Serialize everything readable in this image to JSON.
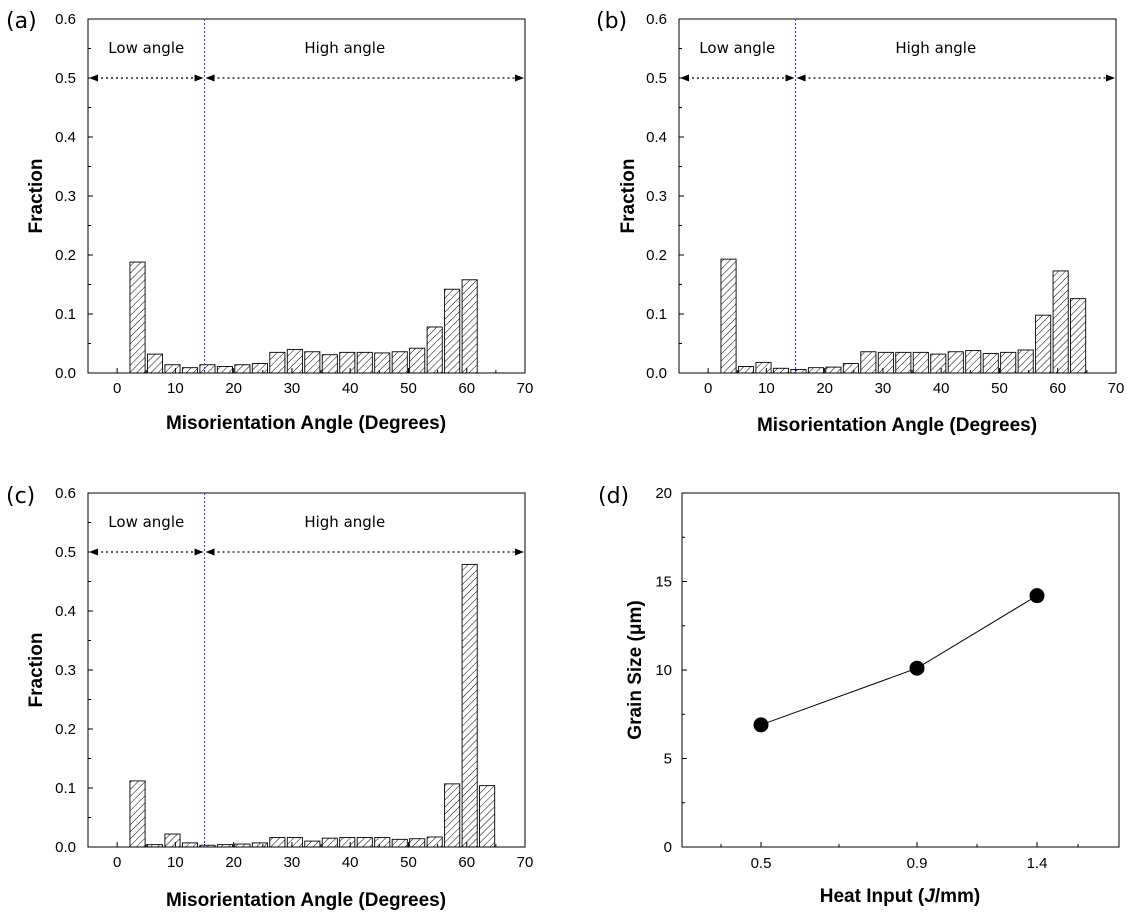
{
  "chart_data": [
    {
      "panel": "(a)",
      "type": "bar",
      "xlabel": "Misorientation Angle (Degrees)",
      "ylabel": "Fraction",
      "xlim": [
        -5,
        70
      ],
      "ylim": [
        0,
        0.6
      ],
      "xticks": [
        0,
        10,
        20,
        30,
        40,
        50,
        60,
        70
      ],
      "yticks": [
        0.0,
        0.1,
        0.2,
        0.3,
        0.4,
        0.5,
        0.6
      ],
      "ytick_labels": [
        "0.0",
        "0.1",
        "0.2",
        "0.3",
        "0.4",
        "0.5",
        "0.6"
      ],
      "bar_width": 2.6,
      "x": [
        3.5,
        6.5,
        9.5,
        12.5,
        15.5,
        18.5,
        21.5,
        24.5,
        27.5,
        30.5,
        33.5,
        36.5,
        39.5,
        42.5,
        45.5,
        48.5,
        51.5,
        54.5,
        57.5,
        60.5,
        63.5
      ],
      "values": [
        0.188,
        0.032,
        0.014,
        0.009,
        0.014,
        0.011,
        0.014,
        0.016,
        0.035,
        0.04,
        0.036,
        0.031,
        0.035,
        0.035,
        0.034,
        0.036,
        0.042,
        0.078,
        0.142,
        0.158,
        0.0
      ],
      "boundary_x": 15,
      "arrow_y": 0.5,
      "region_labels": [
        "Low angle",
        "High angle"
      ]
    },
    {
      "panel": "(b)",
      "type": "bar",
      "xlabel": "Misorientation Angle (Degrees)",
      "ylabel": "Fraction",
      "xlim": [
        -5,
        70
      ],
      "ylim": [
        0,
        0.6
      ],
      "xticks": [
        0,
        10,
        20,
        30,
        40,
        50,
        60,
        70
      ],
      "yticks": [
        0.0,
        0.1,
        0.2,
        0.3,
        0.4,
        0.5,
        0.6
      ],
      "ytick_labels": [
        "0.0",
        "0.1",
        "0.2",
        "0.3",
        "0.4",
        "0.5",
        "0.6"
      ],
      "bar_width": 2.6,
      "x": [
        3.5,
        6.5,
        9.5,
        12.5,
        15.5,
        18.5,
        21.5,
        24.5,
        27.5,
        30.5,
        33.5,
        36.5,
        39.5,
        42.5,
        45.5,
        48.5,
        51.5,
        54.5,
        57.5,
        60.5,
        63.5
      ],
      "values": [
        0.193,
        0.011,
        0.018,
        0.008,
        0.006,
        0.009,
        0.01,
        0.016,
        0.036,
        0.035,
        0.035,
        0.035,
        0.032,
        0.036,
        0.038,
        0.033,
        0.035,
        0.039,
        0.098,
        0.173,
        0.126
      ],
      "boundary_x": 15,
      "arrow_y": 0.5,
      "region_labels": [
        "Low angle",
        "High angle"
      ]
    },
    {
      "panel": "(c)",
      "type": "bar",
      "xlabel": "Misorientation Angle (Degrees)",
      "ylabel": "Fraction",
      "xlim": [
        -5,
        70
      ],
      "ylim": [
        0,
        0.6
      ],
      "xticks": [
        0,
        10,
        20,
        30,
        40,
        50,
        60,
        70
      ],
      "yticks": [
        0.0,
        0.1,
        0.2,
        0.3,
        0.4,
        0.5,
        0.6
      ],
      "ytick_labels": [
        "0.0",
        "0.1",
        "0.2",
        "0.3",
        "0.4",
        "0.5",
        "0.6"
      ],
      "bar_width": 2.6,
      "x": [
        3.5,
        6.5,
        9.5,
        12.5,
        15.5,
        18.5,
        21.5,
        24.5,
        27.5,
        30.5,
        33.5,
        36.5,
        39.5,
        42.5,
        45.5,
        48.5,
        51.5,
        54.5,
        57.5,
        60.5,
        63.5
      ],
      "values": [
        0.112,
        0.004,
        0.022,
        0.007,
        0.003,
        0.004,
        0.005,
        0.007,
        0.016,
        0.016,
        0.01,
        0.015,
        0.016,
        0.016,
        0.016,
        0.013,
        0.014,
        0.017,
        0.107,
        0.479,
        0.104
      ],
      "boundary_x": 15,
      "arrow_y": 0.5,
      "region_labels": [
        "Low angle",
        "High angle"
      ]
    },
    {
      "panel": "(d)",
      "type": "line",
      "xlabel_parts": [
        "Heat Input (",
        "J",
        "/mm)"
      ],
      "ylabel": "Grain Size (μm)",
      "categories": [
        "0.5",
        "0.9",
        "1.4"
      ],
      "values": [
        6.9,
        10.1,
        14.2
      ],
      "ylim": [
        0,
        20
      ],
      "yticks": [
        0,
        5,
        10,
        15,
        20
      ],
      "ytick_labels": [
        "0",
        "5",
        "10",
        "15",
        "20"
      ],
      "markers": "filled-circle"
    }
  ]
}
